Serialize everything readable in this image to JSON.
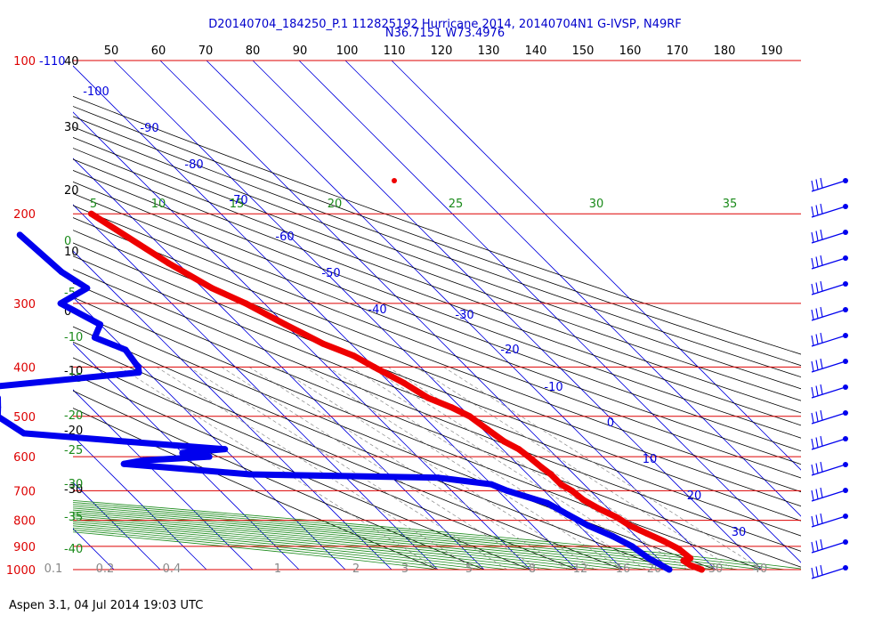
{
  "header": {
    "title_line1": "D20140704_184250_P.1 112825192 Hurricane 2014, 20140704N1 G-IVSP, N49RF",
    "title_line2": "N36.7151 W73.4976"
  },
  "footer": {
    "text": "Aspen 3.1, 04 Jul 2014  19:03 UTC"
  },
  "chart_data": {
    "type": "skew-t",
    "pressure_levels": [
      {
        "p": 100,
        "label": "100"
      },
      {
        "p": 200,
        "label": "200"
      },
      {
        "p": 300,
        "label": "300"
      },
      {
        "p": 400,
        "label": "400"
      },
      {
        "p": 500,
        "label": "500"
      },
      {
        "p": 600,
        "label": "600"
      },
      {
        "p": 700,
        "label": "700"
      },
      {
        "p": 800,
        "label": "800"
      },
      {
        "p": 900,
        "label": "900"
      },
      {
        "p": 1000,
        "label": "1000"
      }
    ],
    "top_scale": [
      "50",
      "60",
      "70",
      "80",
      "90",
      "100",
      "110",
      "120",
      "130",
      "140",
      "150",
      "160",
      "170",
      "180",
      "190"
    ],
    "top_left_label": "-110",
    "left_temp_labels": [
      "40",
      "30",
      "20",
      "10",
      "0",
      "-10",
      "-20",
      "-30"
    ],
    "green_left_labels": [
      "0",
      "-5",
      "-10",
      "-15",
      "-20",
      "-25",
      "-30",
      "-35",
      "-40"
    ],
    "green_top_labels": [
      "5",
      "10",
      "15",
      "20",
      "25",
      "30",
      "35"
    ],
    "isotherm_labels": [
      "-100",
      "-90",
      "-80",
      "-70",
      "-60",
      "-50",
      "-40",
      "-30",
      "-20",
      "-10",
      "0",
      "10",
      "20",
      "30"
    ],
    "bottom_labels": [
      "0.1",
      "0.2",
      "0.4",
      "1",
      "2",
      "3",
      "5",
      "8",
      "12",
      "16",
      "20",
      "30",
      "40"
    ],
    "temperature_profile": [
      [
        200,
        -38
      ],
      [
        250,
        -32
      ],
      [
        280,
        -28
      ],
      [
        300,
        -24
      ],
      [
        330,
        -20
      ],
      [
        360,
        -16
      ],
      [
        380,
        -12
      ],
      [
        400,
        -10
      ],
      [
        430,
        -7
      ],
      [
        460,
        -5
      ],
      [
        480,
        -2
      ],
      [
        500,
        0
      ],
      [
        530,
        1
      ],
      [
        560,
        2
      ],
      [
        580,
        3.5
      ],
      [
        600,
        4
      ],
      [
        630,
        4.5
      ],
      [
        650,
        5
      ],
      [
        680,
        5
      ],
      [
        700,
        6
      ],
      [
        730,
        6.5
      ],
      [
        760,
        8
      ],
      [
        790,
        10
      ],
      [
        820,
        11
      ],
      [
        850,
        13
      ],
      [
        880,
        15
      ],
      [
        910,
        16.5
      ],
      [
        950,
        17
      ],
      [
        960,
        15
      ],
      [
        980,
        15.5
      ],
      [
        1000,
        17
      ]
    ],
    "dewpoint_profile": [
      [
        220,
        -58
      ],
      [
        260,
        -57
      ],
      [
        280,
        -55
      ],
      [
        300,
        -64
      ],
      [
        330,
        -60
      ],
      [
        350,
        -64
      ],
      [
        370,
        -60
      ],
      [
        400,
        -61
      ],
      [
        410,
        -62
      ],
      [
        440,
        -100
      ],
      [
        460,
        -98
      ],
      [
        480,
        -100
      ],
      [
        500,
        -102
      ],
      [
        540,
        -100
      ],
      [
        560,
        -80
      ],
      [
        570,
        -70
      ],
      [
        580,
        -60
      ],
      [
        590,
        -70
      ],
      [
        600,
        -65
      ],
      [
        610,
        -80
      ],
      [
        620,
        -85
      ],
      [
        650,
        -60
      ],
      [
        660,
        -20
      ],
      [
        680,
        -10
      ],
      [
        700,
        -8
      ],
      [
        740,
        -2
      ],
      [
        780,
        0
      ],
      [
        820,
        2
      ],
      [
        860,
        5
      ],
      [
        900,
        7
      ],
      [
        950,
        8
      ],
      [
        1000,
        10
      ]
    ],
    "wind_barbs_count": 16
  }
}
